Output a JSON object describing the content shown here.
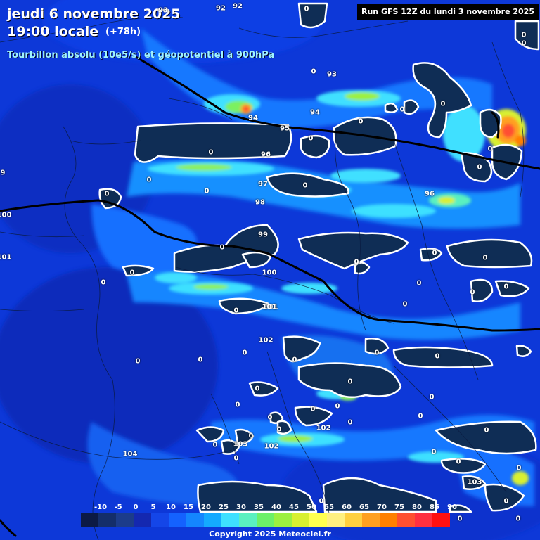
{
  "header": {
    "date": "jeudi 6 novembre 2025",
    "time": "19:00 locale",
    "lead": "(+78h)",
    "parameter": "Tourbillon absolu (10e5/s) et géopotentiel à 900hPa",
    "run": "Run GFS 12Z du lundi 3 novembre 2025"
  },
  "footer": {
    "copyright": "Copyright 2025 Meteociel.fr"
  },
  "colorbar": {
    "ticks": [
      "-10",
      "-5",
      "0",
      "5",
      "10",
      "15",
      "20",
      "25",
      "30",
      "35",
      "40",
      "45",
      "50",
      "55",
      "60",
      "65",
      "70",
      "75",
      "80",
      "85",
      "90"
    ],
    "colors": [
      "#0c1a44",
      "#142e6a",
      "#1c3c8a",
      "#1428b0",
      "#1446e8",
      "#1462ff",
      "#1486ff",
      "#14aaff",
      "#3ee0ff",
      "#5af0c0",
      "#6cf068",
      "#9cf040",
      "#d8f030",
      "#ffff50",
      "#fff080",
      "#ffd040",
      "#ffa020",
      "#ff8000",
      "#ff5030",
      "#ff3040",
      "#ff1010"
    ]
  },
  "colors": {
    "background": "#0d38d8",
    "negative_vorticity": "#0f2d55",
    "contour_zero": "#ffffff",
    "front_line": "#000000"
  },
  "contour_labels": [
    "93",
    "92",
    "92",
    "0",
    "0",
    "0",
    "0",
    "94",
    "94",
    "93",
    "0",
    "95",
    "0",
    "96",
    "0",
    "0",
    "97",
    "0",
    "0",
    "98",
    "0",
    "99",
    "0",
    "0",
    "100",
    "101",
    "0",
    "0",
    "0",
    "0",
    "0",
    "0",
    "0",
    "0",
    "101",
    "102",
    "0",
    "0",
    "0",
    "0",
    "0",
    "0",
    "0",
    "0",
    "0",
    "0",
    "0",
    "102",
    "0",
    "0",
    "0",
    "103",
    "102",
    "104",
    "0",
    "0",
    "0",
    "0",
    "103",
    "0",
    "0",
    "0",
    "0",
    "0",
    "0",
    "9",
    "100",
    "101",
    "0",
    "0",
    "0",
    "0",
    "0",
    "0",
    "0",
    "0",
    "96"
  ]
}
